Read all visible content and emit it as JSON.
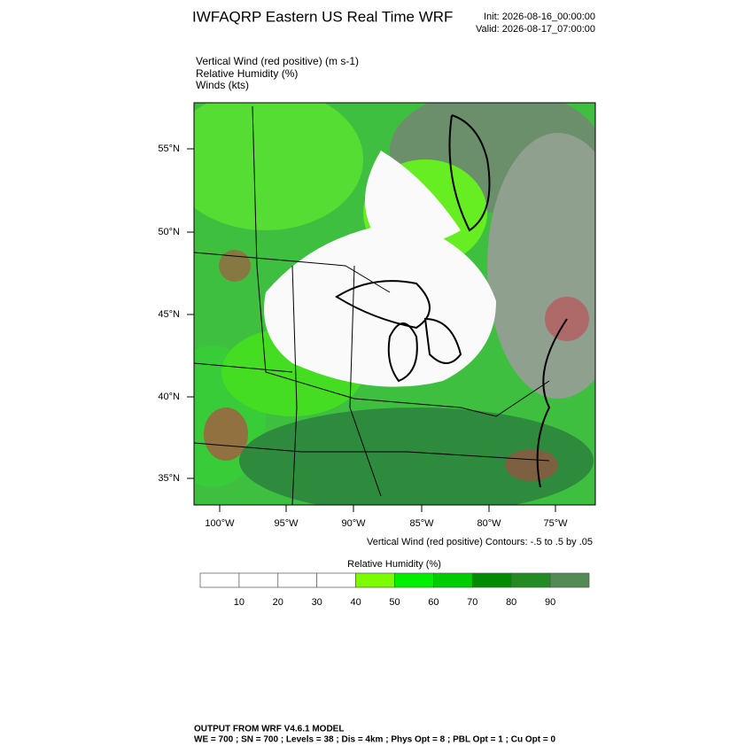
{
  "header": {
    "title": "IWFAQRP Eastern US Real Time WRF",
    "init": "Init: 2026-08-16_00:00:00",
    "valid": "Valid: 2026-08-17_07:00:00"
  },
  "fields": [
    "Vertical Wind (red positive)   (m s-1)",
    "Relative Humidity   (%)",
    "Winds   (kts)"
  ],
  "map": {
    "lat_labels": [
      "55°N",
      "50°N",
      "45°N",
      "40°N",
      "35°N"
    ],
    "lon_labels": [
      "100°W",
      "95°W",
      "90°W",
      "85°W",
      "80°W",
      "75°W"
    ],
    "contour_note": "Vertical Wind (red positive) Contours: -.5 to .5 by .05"
  },
  "colorbar": {
    "title": "Relative Humidity  (%)",
    "labels": [
      10,
      20,
      30,
      40,
      50,
      60,
      70,
      80,
      90
    ],
    "colors": [
      "#ffffff",
      "#ffffff",
      "#ffffff",
      "#ffffff",
      "#7cfc00",
      "#00ee00",
      "#00cd00",
      "#008b00",
      "#228b22",
      "#548b54"
    ]
  },
  "footer": [
    "OUTPUT FROM WRF V4.6.1 MODEL",
    "WE = 700 ; SN = 700 ; Levels = 38 ; Dis = 4km ; Phys Opt = 8 ; PBL Opt = 1 ; Cu Opt = 0"
  ]
}
